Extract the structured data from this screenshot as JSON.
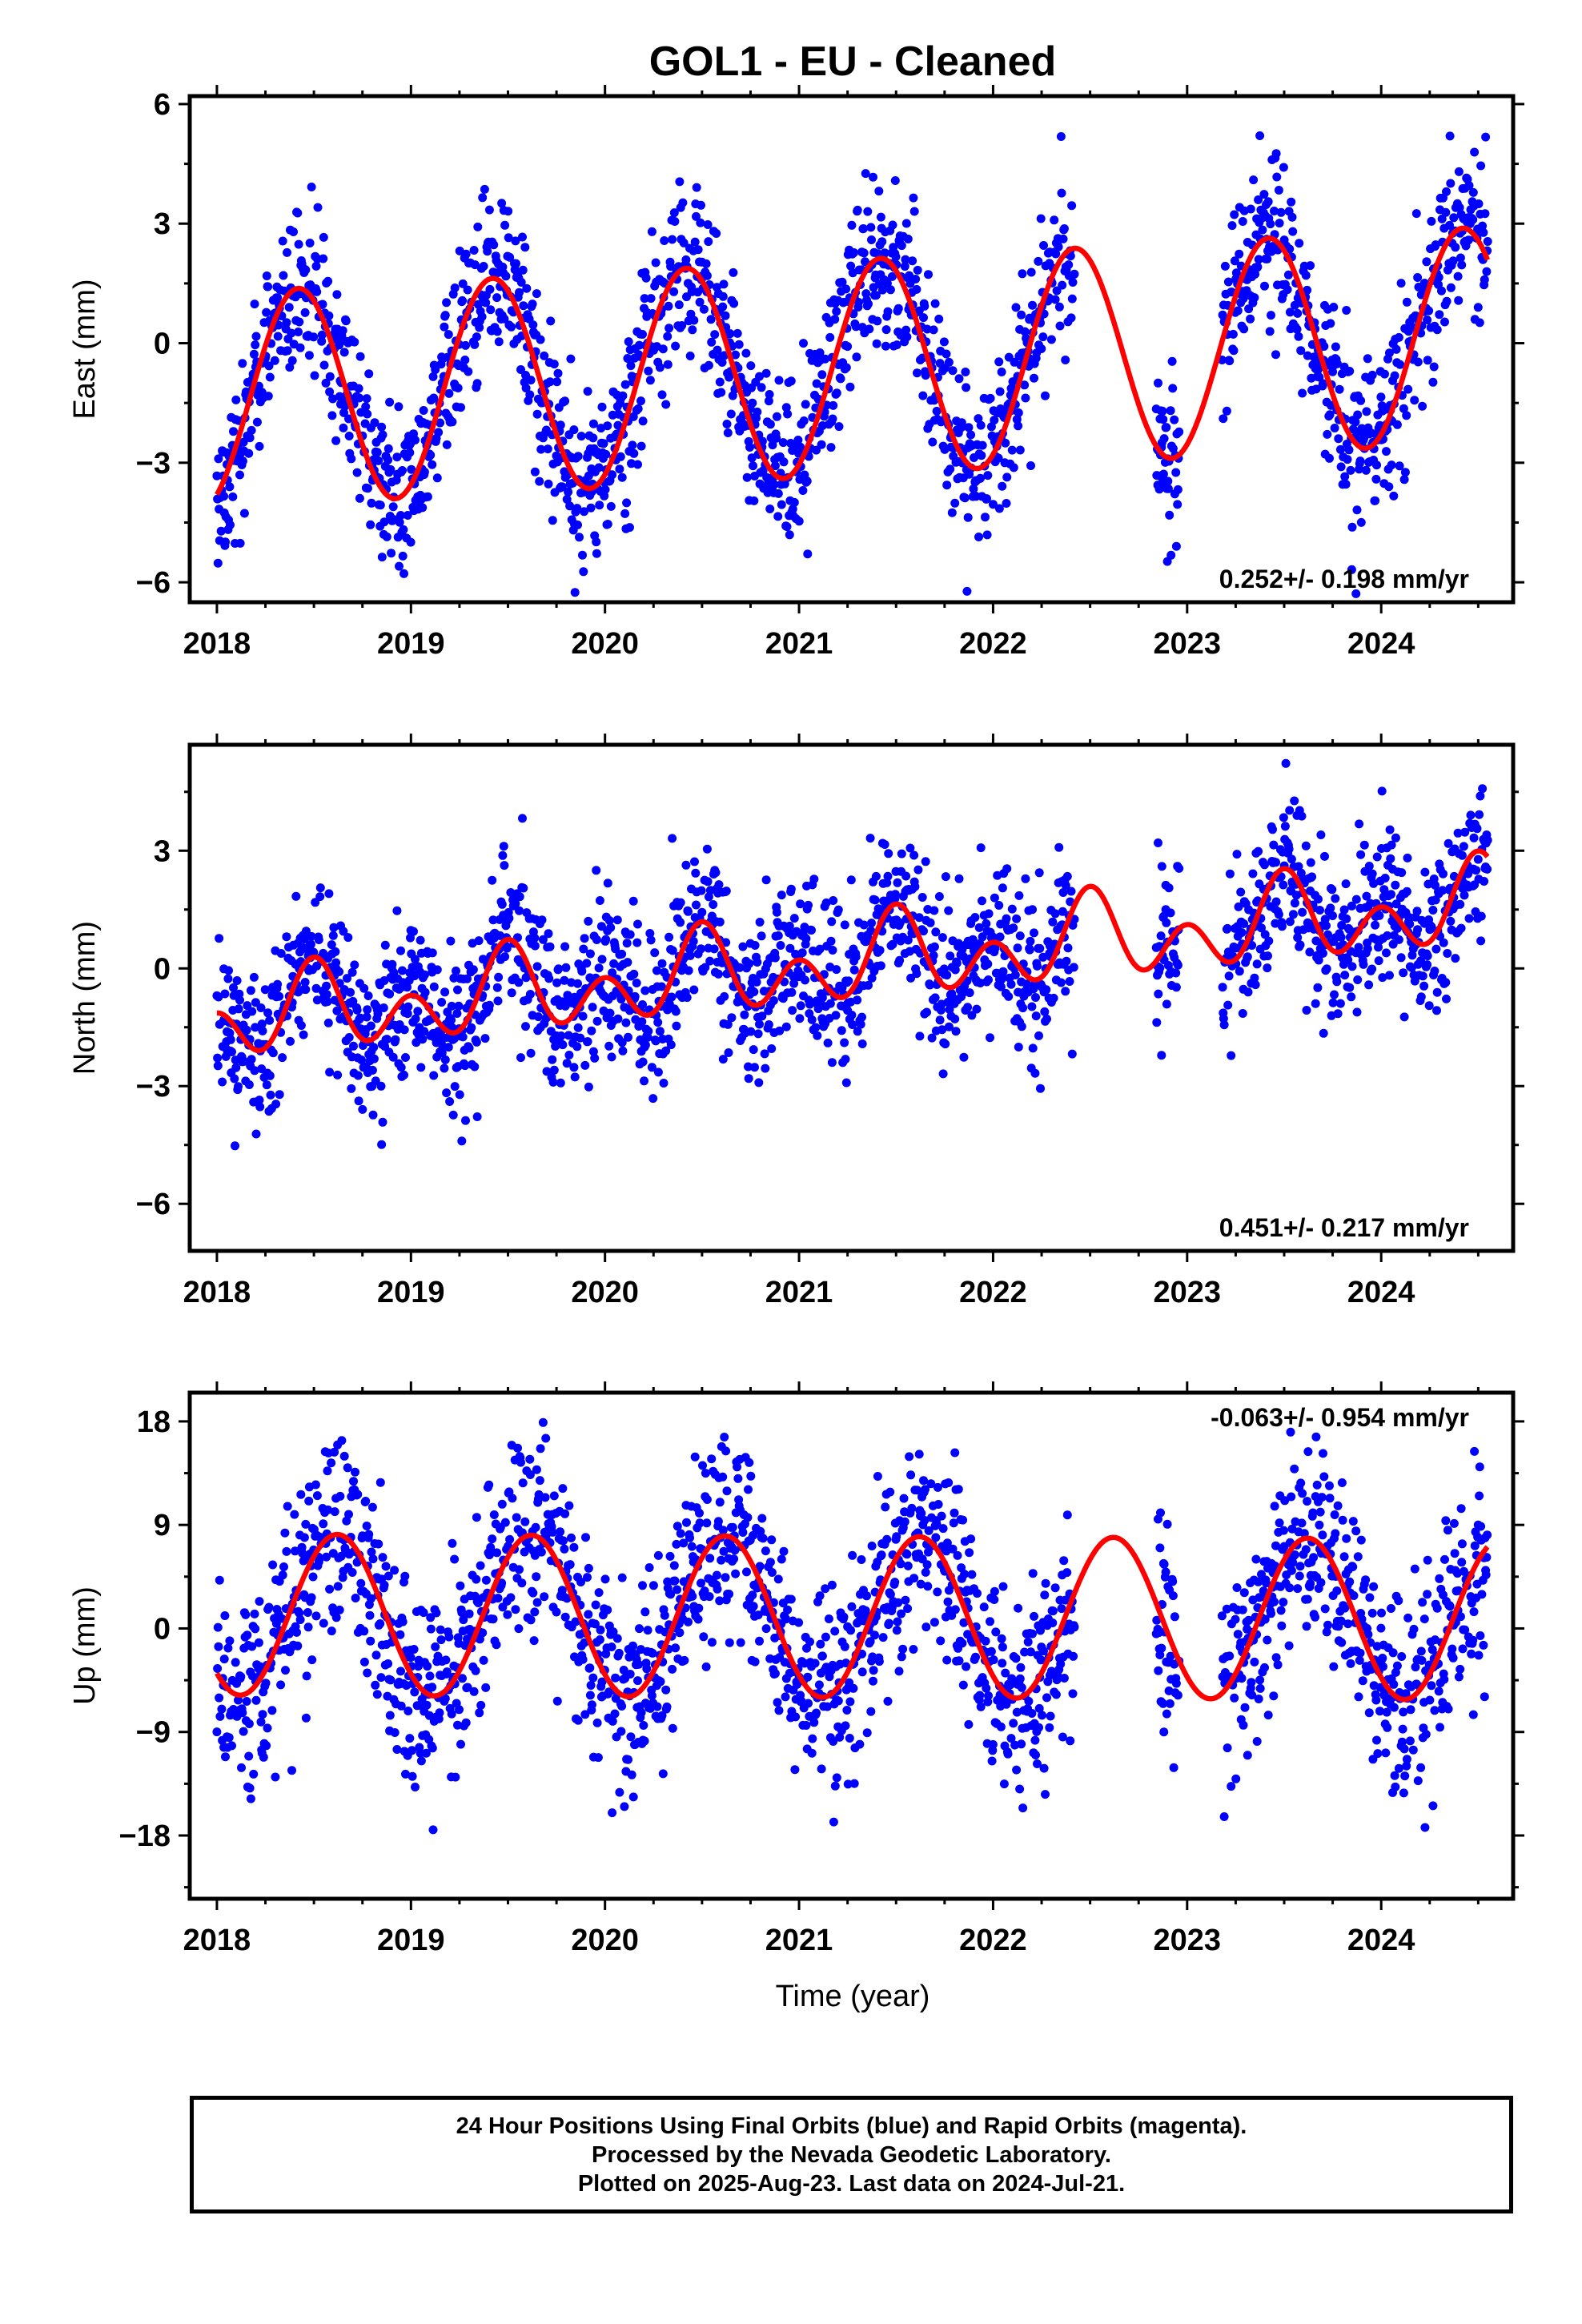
{
  "title": "GOL1  - EU - Cleaned",
  "colors": {
    "points": "#0000ff",
    "model": "#ff0000",
    "frame": "#000000"
  },
  "footer": {
    "line1": "24 Hour Positions Using Final Orbits (blue) and Rapid Orbits (magenta).",
    "line2": "Processed by the Nevada Geodetic Laboratory.",
    "line3": "Plotted on 2025-Aug-23. Last data on 2024-Jul-21."
  },
  "chart_data": [
    {
      "type": "scatter",
      "ylabel": "East (mm)",
      "xlabel": "",
      "xlim": [
        2017.86,
        2024.68
      ],
      "ylim": [
        -6.5,
        6.2
      ],
      "xticks": [
        2018,
        2019,
        2020,
        2021,
        2022,
        2023,
        2024
      ],
      "yticks": [
        -6,
        -3,
        0,
        3,
        6
      ],
      "grid": false,
      "annotation": "0.252+/- 0.198 mm/yr",
      "annotation_position": "bottom-right",
      "series": [
        {
          "kind": "points",
          "color": "#0000ff",
          "gaps": [
            [
              2022.42,
              2022.84
            ],
            [
              2022.96,
              2023.18
            ]
          ],
          "extra_points": [
            [
              2022.85,
              -1.0
            ],
            [
              2022.86,
              -1.9
            ],
            [
              2022.87,
              -2.5
            ],
            [
              2022.88,
              -3.5
            ],
            [
              2022.9,
              -2.9
            ]
          ],
          "noise": 1.05
        },
        {
          "kind": "model",
          "color": "#ff0000",
          "x_range": [
            2018.0,
            2024.55
          ],
          "offset": -0.6,
          "rate": 0.252,
          "t0": 2021.3,
          "annual_amplitude": 2.7,
          "annual_peak": 2021.42,
          "semiannual_amplitude": 0.0,
          "semiannual_peak": 2021.42
        }
      ]
    },
    {
      "type": "scatter",
      "ylabel": "North (mm)",
      "xlabel": "",
      "xlim": [
        2017.86,
        2024.68
      ],
      "ylim": [
        -7.2,
        5.7
      ],
      "xticks": [
        2018,
        2019,
        2020,
        2021,
        2022,
        2023,
        2024
      ],
      "yticks": [
        -6,
        -3,
        0,
        3
      ],
      "grid": false,
      "annotation": "0.451+/- 0.217 mm/yr",
      "annotation_position": "bottom-right",
      "series": [
        {
          "kind": "points",
          "color": "#0000ff",
          "gaps": [
            [
              2022.42,
              2022.84
            ],
            [
              2022.96,
              2023.18
            ]
          ],
          "extra_points": [
            [
              2022.85,
              3.2
            ],
            [
              2022.87,
              2.6
            ],
            [
              2022.89,
              1.5
            ]
          ],
          "noise": 1.0
        },
        {
          "kind": "model",
          "color": "#ff0000",
          "x_range": [
            2018.0,
            2024.55
          ],
          "offset": 0.15,
          "rate": 0.451,
          "t0": 2021.3,
          "annual_amplitude": 0.6,
          "annual_peak": 2021.5,
          "semiannual_amplitude": 0.8,
          "semiannual_peak": 2021.5
        }
      ]
    },
    {
      "type": "scatter",
      "ylabel": "Up (mm)",
      "xlabel": "Time (year)",
      "xlim": [
        2017.86,
        2024.68
      ],
      "ylim": [
        -23.5,
        20.5
      ],
      "xticks": [
        2018,
        2019,
        2020,
        2021,
        2022,
        2023,
        2024
      ],
      "yticks": [
        -18,
        -9,
        0,
        9,
        18
      ],
      "grid": false,
      "annotation": "-0.063+/- 0.954 mm/yr",
      "annotation_position": "top-right",
      "series": [
        {
          "kind": "points",
          "color": "#0000ff",
          "gaps": [
            [
              2022.42,
              2022.84
            ],
            [
              2022.96,
              2023.18
            ]
          ],
          "extra_points": [
            [
              2022.85,
              9.5
            ],
            [
              2022.86,
              7.0
            ],
            [
              2022.88,
              -9.0
            ]
          ],
          "noise": 4.4
        },
        {
          "kind": "model",
          "color": "#ff0000",
          "x_range": [
            2018.0,
            2024.55
          ],
          "offset": 1.0,
          "rate": -0.063,
          "t0": 2021.3,
          "annual_amplitude": 7.0,
          "annual_peak": 2021.62,
          "semiannual_amplitude": 0.0,
          "semiannual_peak": 2021.62
        }
      ]
    }
  ]
}
